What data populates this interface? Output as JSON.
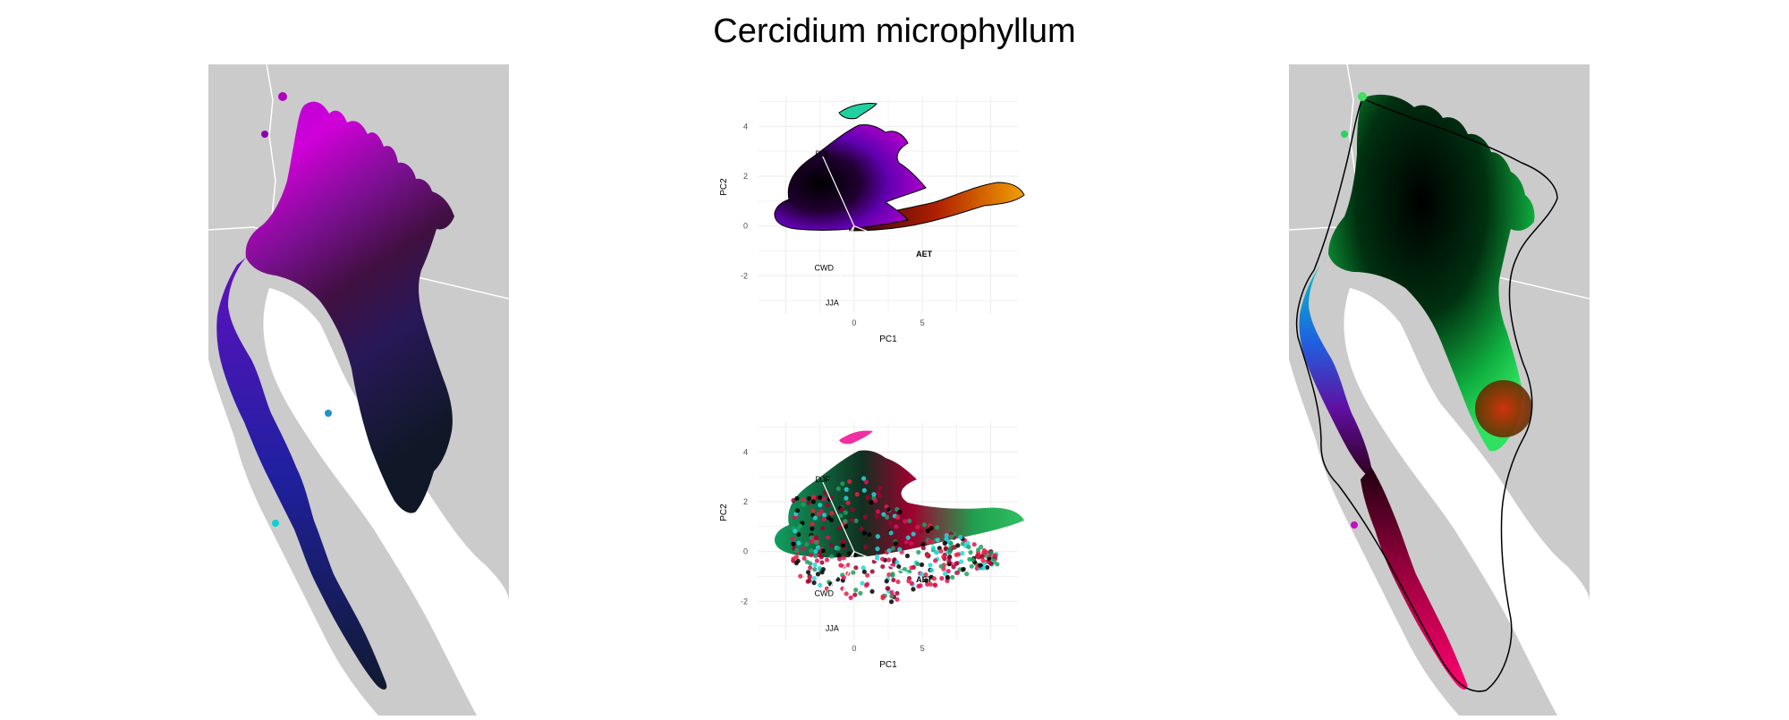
{
  "title": "Cercidium microphyllum",
  "colors": {
    "land": "#cbcbcb",
    "border": "#ffffff",
    "grid": "#ebebeb",
    "axis_text": "#4d4d4d"
  },
  "maps": [
    {
      "name": "range-map-left",
      "outline": false,
      "palette": "purple-black"
    },
    {
      "name": "range-map-right",
      "outline": true,
      "palette": "green-black-red"
    }
  ],
  "chart_data": [
    {
      "type": "scatter",
      "panel": "pca-top",
      "xlabel": "PC1",
      "ylabel": "PC2",
      "xlim": [
        -7,
        12
      ],
      "ylim": [
        -3.5,
        5.2
      ],
      "xticks": [
        0,
        5
      ],
      "yticks": [
        -2,
        0,
        2,
        4
      ],
      "grid": true,
      "outline": true,
      "loadings": [
        {
          "label": "DJF",
          "x": -2.3,
          "y": 2.8
        },
        {
          "label": "AET",
          "x": 5.0,
          "y": -1.1
        },
        {
          "label": "CWD",
          "x": -2.2,
          "y": -1.8
        },
        {
          "label": "JJA",
          "x": -1.6,
          "y": -3.2
        }
      ],
      "point_colors": [
        "#7a00c8",
        "#000000",
        "#c8007a",
        "#d06000",
        "#0060c8",
        "#00c878"
      ]
    },
    {
      "type": "scatter",
      "panel": "pca-bottom",
      "xlabel": "PC1",
      "ylabel": "PC2",
      "xlim": [
        -7,
        12
      ],
      "ylim": [
        -3.5,
        5.2
      ],
      "xticks": [
        0,
        5
      ],
      "yticks": [
        -2,
        0,
        2,
        4
      ],
      "grid": true,
      "outline": false,
      "loadings": [
        {
          "label": "DJF",
          "x": -2.3,
          "y": 2.8
        },
        {
          "label": "AET",
          "x": 5.0,
          "y": -1.1
        },
        {
          "label": "CWD",
          "x": -2.2,
          "y": -1.8
        },
        {
          "label": "JJA",
          "x": -1.6,
          "y": -3.2
        }
      ],
      "point_colors": [
        "#1fa060",
        "#000000",
        "#e0105a",
        "#a00030",
        "#20d8e0",
        "#e82040"
      ]
    }
  ]
}
